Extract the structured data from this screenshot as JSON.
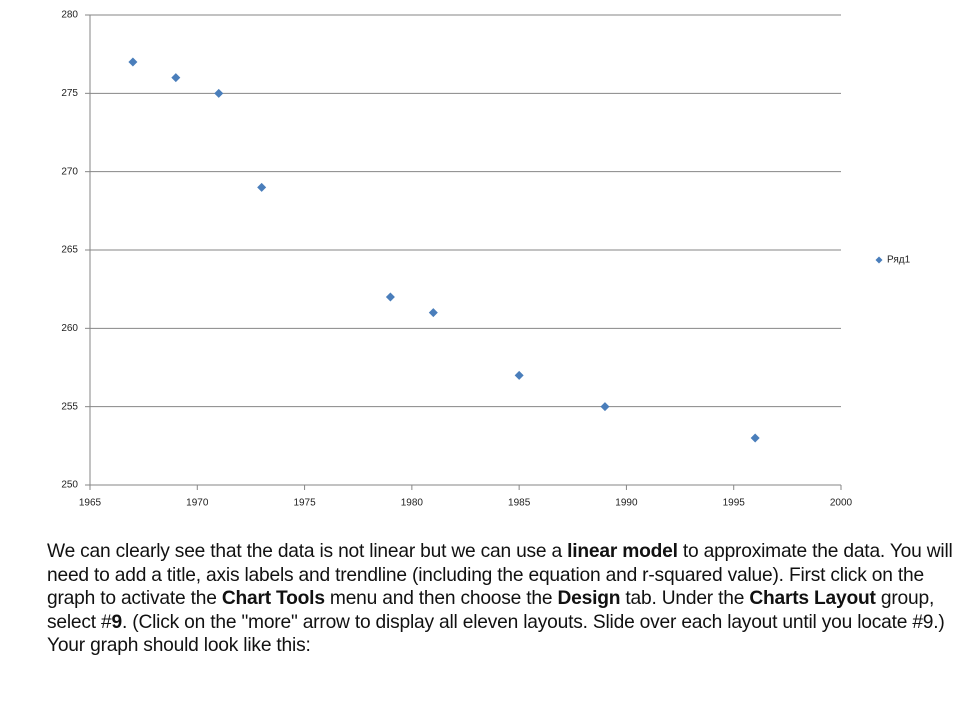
{
  "chart_data": {
    "type": "scatter",
    "x": [
      1967,
      1969,
      1971,
      1973,
      1979,
      1981,
      1985,
      1989,
      1996
    ],
    "series": [
      {
        "name": "Ряд1",
        "color": "#4a7ebb",
        "values": [
          277,
          276,
          275,
          269,
          262,
          261,
          257,
          255,
          253
        ]
      }
    ],
    "xlim": [
      1965,
      2000
    ],
    "xticks": [
      1965,
      1970,
      1975,
      1980,
      1985,
      1990,
      1995,
      2000
    ],
    "ylim": [
      250,
      280
    ],
    "yticks": [
      250,
      255,
      260,
      265,
      270,
      275,
      280
    ],
    "grid": true,
    "legend": "right"
  },
  "paragraph": [
    {
      "text": "We can clearly see that the data is not linear but we can use a ",
      "bold": false
    },
    {
      "text": "linear model",
      "bold": true
    },
    {
      "text": " to approximate the data.  You will need to add a title, axis labels and trendline (including the equation and r-squared value). First click on the graph to activate the ",
      "bold": false
    },
    {
      "text": "Chart Tools",
      "bold": true
    },
    {
      "text": " menu and then choose the ",
      "bold": false
    },
    {
      "text": "Design",
      "bold": true
    },
    {
      "text": " tab.  Under the ",
      "bold": false
    },
    {
      "text": "Charts Layout",
      "bold": true
    },
    {
      "text": " group, select #",
      "bold": false
    },
    {
      "text": "9",
      "bold": true
    },
    {
      "text": ". (Click on the \"more\" arrow to display all eleven layouts. Slide over each layout until you locate #9.)  Your graph should look like this:",
      "bold": false
    }
  ]
}
